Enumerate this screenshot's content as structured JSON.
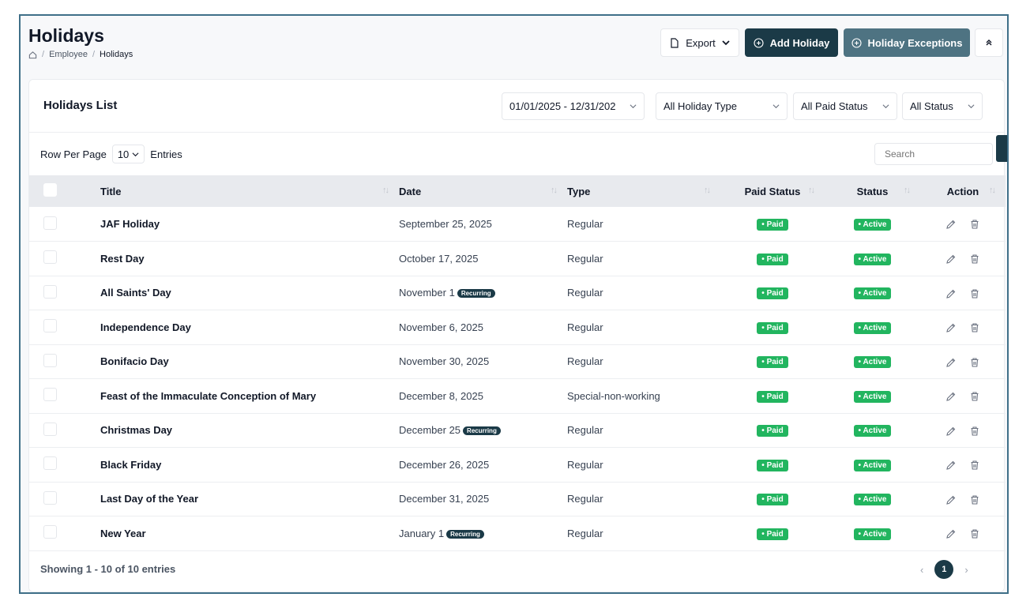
{
  "header": {
    "title": "Holidays",
    "breadcrumb": [
      "Employee",
      "Holidays"
    ],
    "export_label": "Export",
    "add_label": "Add Holiday",
    "exceptions_label": "Holiday Exceptions"
  },
  "list": {
    "title": "Holidays List",
    "filters": {
      "date_range": "01/01/2025 - 12/31/202",
      "type": "All Holiday Type",
      "paid": "All Paid Status",
      "status": "All Status"
    },
    "rows_per_page_label": "Row Per Page",
    "rows_per_page_value": "10",
    "entries_label": "Entries",
    "search_placeholder": "Search",
    "columns": [
      "Title",
      "Date",
      "Type",
      "Paid Status",
      "Status",
      "Action"
    ],
    "rows": [
      {
        "title": "JAF Holiday",
        "date": "September 25, 2025",
        "recurring": "",
        "type": "Regular",
        "paid": "• Paid",
        "status": "• Active"
      },
      {
        "title": "Rest Day",
        "date": "October 17, 2025",
        "recurring": "",
        "type": "Regular",
        "paid": "• Paid",
        "status": "• Active"
      },
      {
        "title": "All Saints' Day",
        "date": "November 1",
        "recurring": "Recurring",
        "type": "Regular",
        "paid": "• Paid",
        "status": "• Active"
      },
      {
        "title": "Independence Day",
        "date": "November 6, 2025",
        "recurring": "",
        "type": "Regular",
        "paid": "• Paid",
        "status": "• Active"
      },
      {
        "title": "Bonifacio Day",
        "date": "November 30, 2025",
        "recurring": "",
        "type": "Regular",
        "paid": "• Paid",
        "status": "• Active"
      },
      {
        "title": "Feast of the Immaculate Conception of Mary",
        "date": "December 8, 2025",
        "recurring": "",
        "type": "Special-non-working",
        "paid": "• Paid",
        "status": "• Active"
      },
      {
        "title": "Christmas Day",
        "date": "December 25",
        "recurring": "Recurring",
        "type": "Regular",
        "paid": "• Paid",
        "status": "• Active"
      },
      {
        "title": "Black Friday",
        "date": "December 26, 2025",
        "recurring": "",
        "type": "Regular",
        "paid": "• Paid",
        "status": "• Active"
      },
      {
        "title": "Last Day of the Year",
        "date": "December 31, 2025",
        "recurring": "",
        "type": "Regular",
        "paid": "• Paid",
        "status": "• Active"
      },
      {
        "title": "New Year",
        "date": "January 1",
        "recurring": "Recurring",
        "type": "Regular",
        "paid": "• Paid",
        "status": "• Active"
      }
    ],
    "footer_text": "Showing 1 - 10 of 10 entries",
    "current_page": "1"
  },
  "colors": {
    "primary": "#1b3a47",
    "secondary": "#4e7382",
    "success": "#22b55f"
  }
}
